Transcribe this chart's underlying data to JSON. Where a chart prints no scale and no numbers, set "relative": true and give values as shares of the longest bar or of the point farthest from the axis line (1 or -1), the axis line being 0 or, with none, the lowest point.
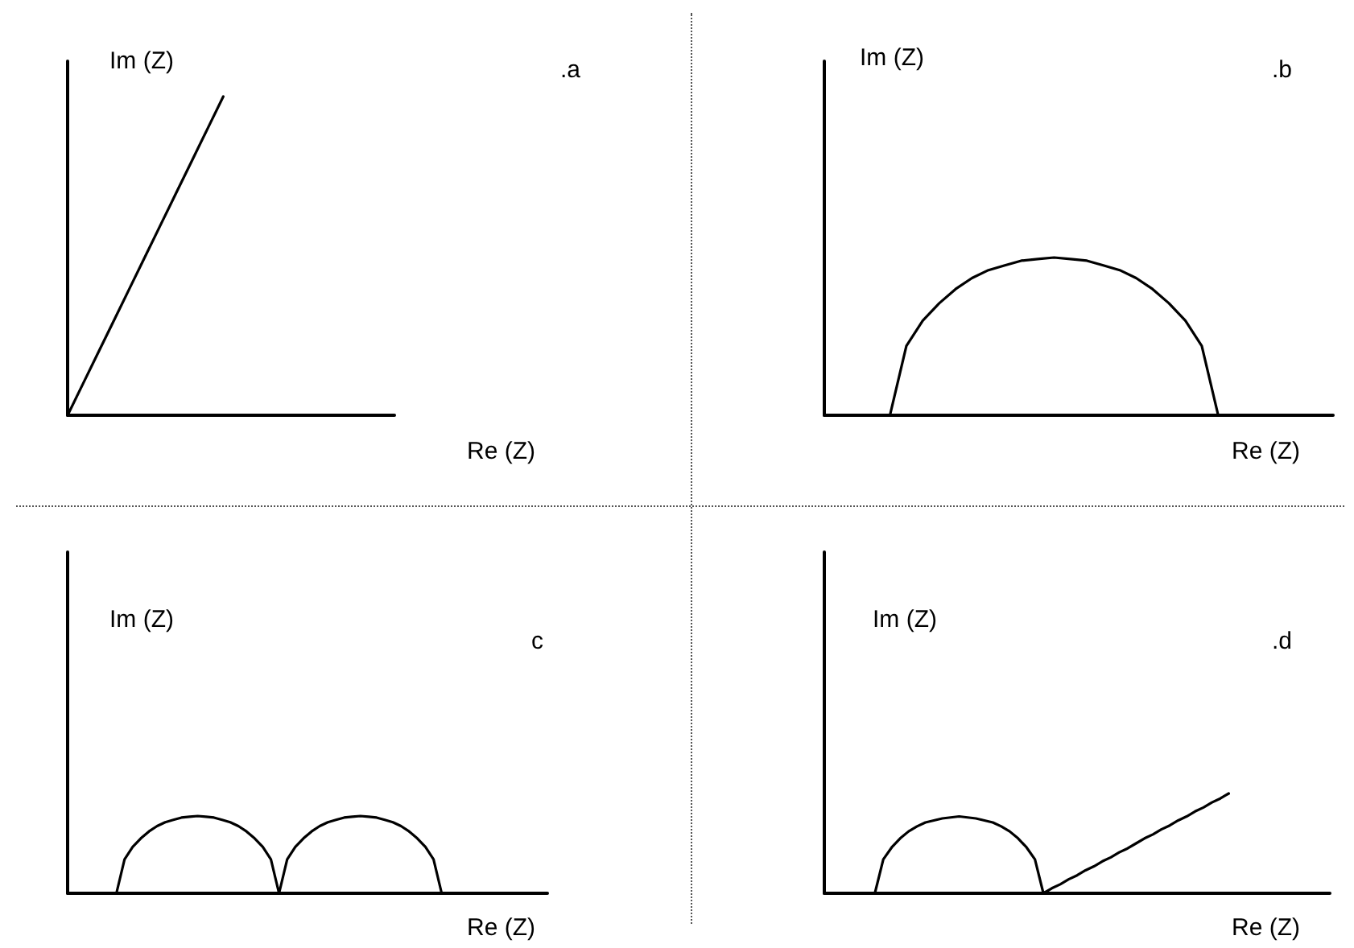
{
  "chart_data": [
    {
      "type": "line",
      "relative": true,
      "xlabel": "Re (Z)",
      "ylabel": "Im (Z)",
      "annotations": [
        ".a"
      ],
      "marker": "none",
      "categories": [
        null,
        null,
        null,
        null,
        null,
        null,
        null,
        null,
        null,
        null,
        null,
        null,
        null,
        null,
        null,
        null,
        null,
        null,
        null,
        null,
        null,
        null
      ],
      "series": [
        {
          "color": "#000000",
          "values": [
            0,
            0.1,
            0.2,
            0.3,
            0.4,
            0.5,
            0.6,
            0.7,
            0.8,
            0.9,
            1,
            null,
            null,
            null,
            null,
            null,
            null,
            null,
            null,
            null,
            null,
            null
          ]
        }
      ]
    },
    {
      "type": "line",
      "relative": true,
      "xlabel": "Re (Z)",
      "ylabel": "Im (Z)",
      "annotations": [
        ".b"
      ],
      "marker": "none",
      "categories": [
        null,
        null,
        null,
        null,
        null,
        null,
        null,
        null,
        null,
        null,
        null,
        null,
        null,
        null,
        null,
        null,
        null,
        null,
        null,
        null,
        null,
        null,
        null,
        null,
        null,
        null,
        null,
        null,
        null,
        null,
        null,
        null
      ],
      "series": [
        {
          "color": "#000000",
          "values": [
            null,
            null,
            null,
            null,
            0,
            0.44,
            0.6,
            0.71,
            0.8,
            0.87,
            0.92,
            0.95,
            0.98,
            0.99,
            1,
            0.99,
            0.98,
            0.95,
            0.92,
            0.87,
            0.8,
            0.71,
            0.6,
            0.44,
            0,
            null,
            null,
            null,
            null,
            null,
            null,
            null
          ]
        }
      ]
    },
    {
      "type": "line",
      "relative": true,
      "xlabel": "Re (Z)",
      "ylabel": "Im (Z)",
      "annotations": [
        "c"
      ],
      "marker": "none",
      "categories": [
        null,
        null,
        null,
        null,
        null,
        null,
        null,
        null,
        null,
        null,
        null,
        null,
        null,
        null,
        null,
        null,
        null,
        null,
        null,
        null,
        null,
        null,
        null,
        null,
        null,
        null,
        null,
        null,
        null,
        null,
        null,
        null,
        null,
        null,
        null,
        null,
        null,
        null,
        null,
        null,
        null,
        null,
        null,
        null,
        null,
        null,
        null,
        null,
        null,
        null,
        null,
        null,
        null,
        null,
        null,
        null,
        null,
        null,
        null,
        null
      ],
      "series": [
        {
          "color": "#000000",
          "values": [
            null,
            null,
            null,
            null,
            null,
            null,
            0,
            0.44,
            0.6,
            0.71,
            0.8,
            0.87,
            0.92,
            0.95,
            0.98,
            0.99,
            1,
            0.99,
            0.98,
            0.95,
            0.92,
            0.87,
            0.8,
            0.71,
            0.6,
            0.44,
            0,
            0.44,
            0.6,
            0.71,
            0.8,
            0.87,
            0.92,
            0.95,
            0.98,
            0.99,
            1,
            0.99,
            0.98,
            0.95,
            0.92,
            0.87,
            0.8,
            0.71,
            0.6,
            0.44,
            0,
            null,
            null,
            null,
            null,
            null,
            null,
            null,
            null,
            null,
            null,
            null,
            null,
            null
          ]
        }
      ]
    },
    {
      "type": "line",
      "relative": true,
      "xlabel": "Re (Z)",
      "ylabel": "Im (Z)",
      "annotations": [
        ".d"
      ],
      "marker": "none",
      "categories": [
        null,
        null,
        null,
        null,
        null,
        null,
        null,
        null,
        null,
        null,
        null,
        null,
        null,
        null,
        null,
        null,
        null,
        null,
        null,
        null,
        null,
        null,
        null,
        null,
        null,
        null,
        null,
        null,
        null,
        null,
        null,
        null,
        null,
        null,
        null,
        null,
        null,
        null,
        null,
        null,
        null,
        null,
        null,
        null,
        null,
        null,
        null,
        null,
        null,
        null,
        null,
        null,
        null,
        null,
        null,
        null,
        null,
        null,
        null,
        null,
        null
      ],
      "series": [
        {
          "color": "#000000",
          "values": [
            null,
            null,
            null,
            null,
            null,
            null,
            0,
            0.34,
            0.46,
            0.55,
            0.62,
            0.67,
            0.71,
            0.73,
            0.75,
            0.76,
            0.77,
            0.76,
            0.75,
            0.73,
            0.71,
            0.67,
            0.62,
            0.55,
            0.46,
            0.34,
            0,
            0.05,
            0.09,
            0.14,
            0.18,
            0.23,
            0.27,
            0.32,
            0.36,
            0.41,
            0.45,
            0.5,
            0.55,
            0.59,
            0.64,
            0.68,
            0.73,
            0.77,
            0.82,
            0.86,
            0.91,
            0.95,
            1,
            null,
            null,
            null,
            null,
            null,
            null,
            null,
            null,
            null,
            null,
            null,
            null
          ]
        }
      ]
    }
  ]
}
